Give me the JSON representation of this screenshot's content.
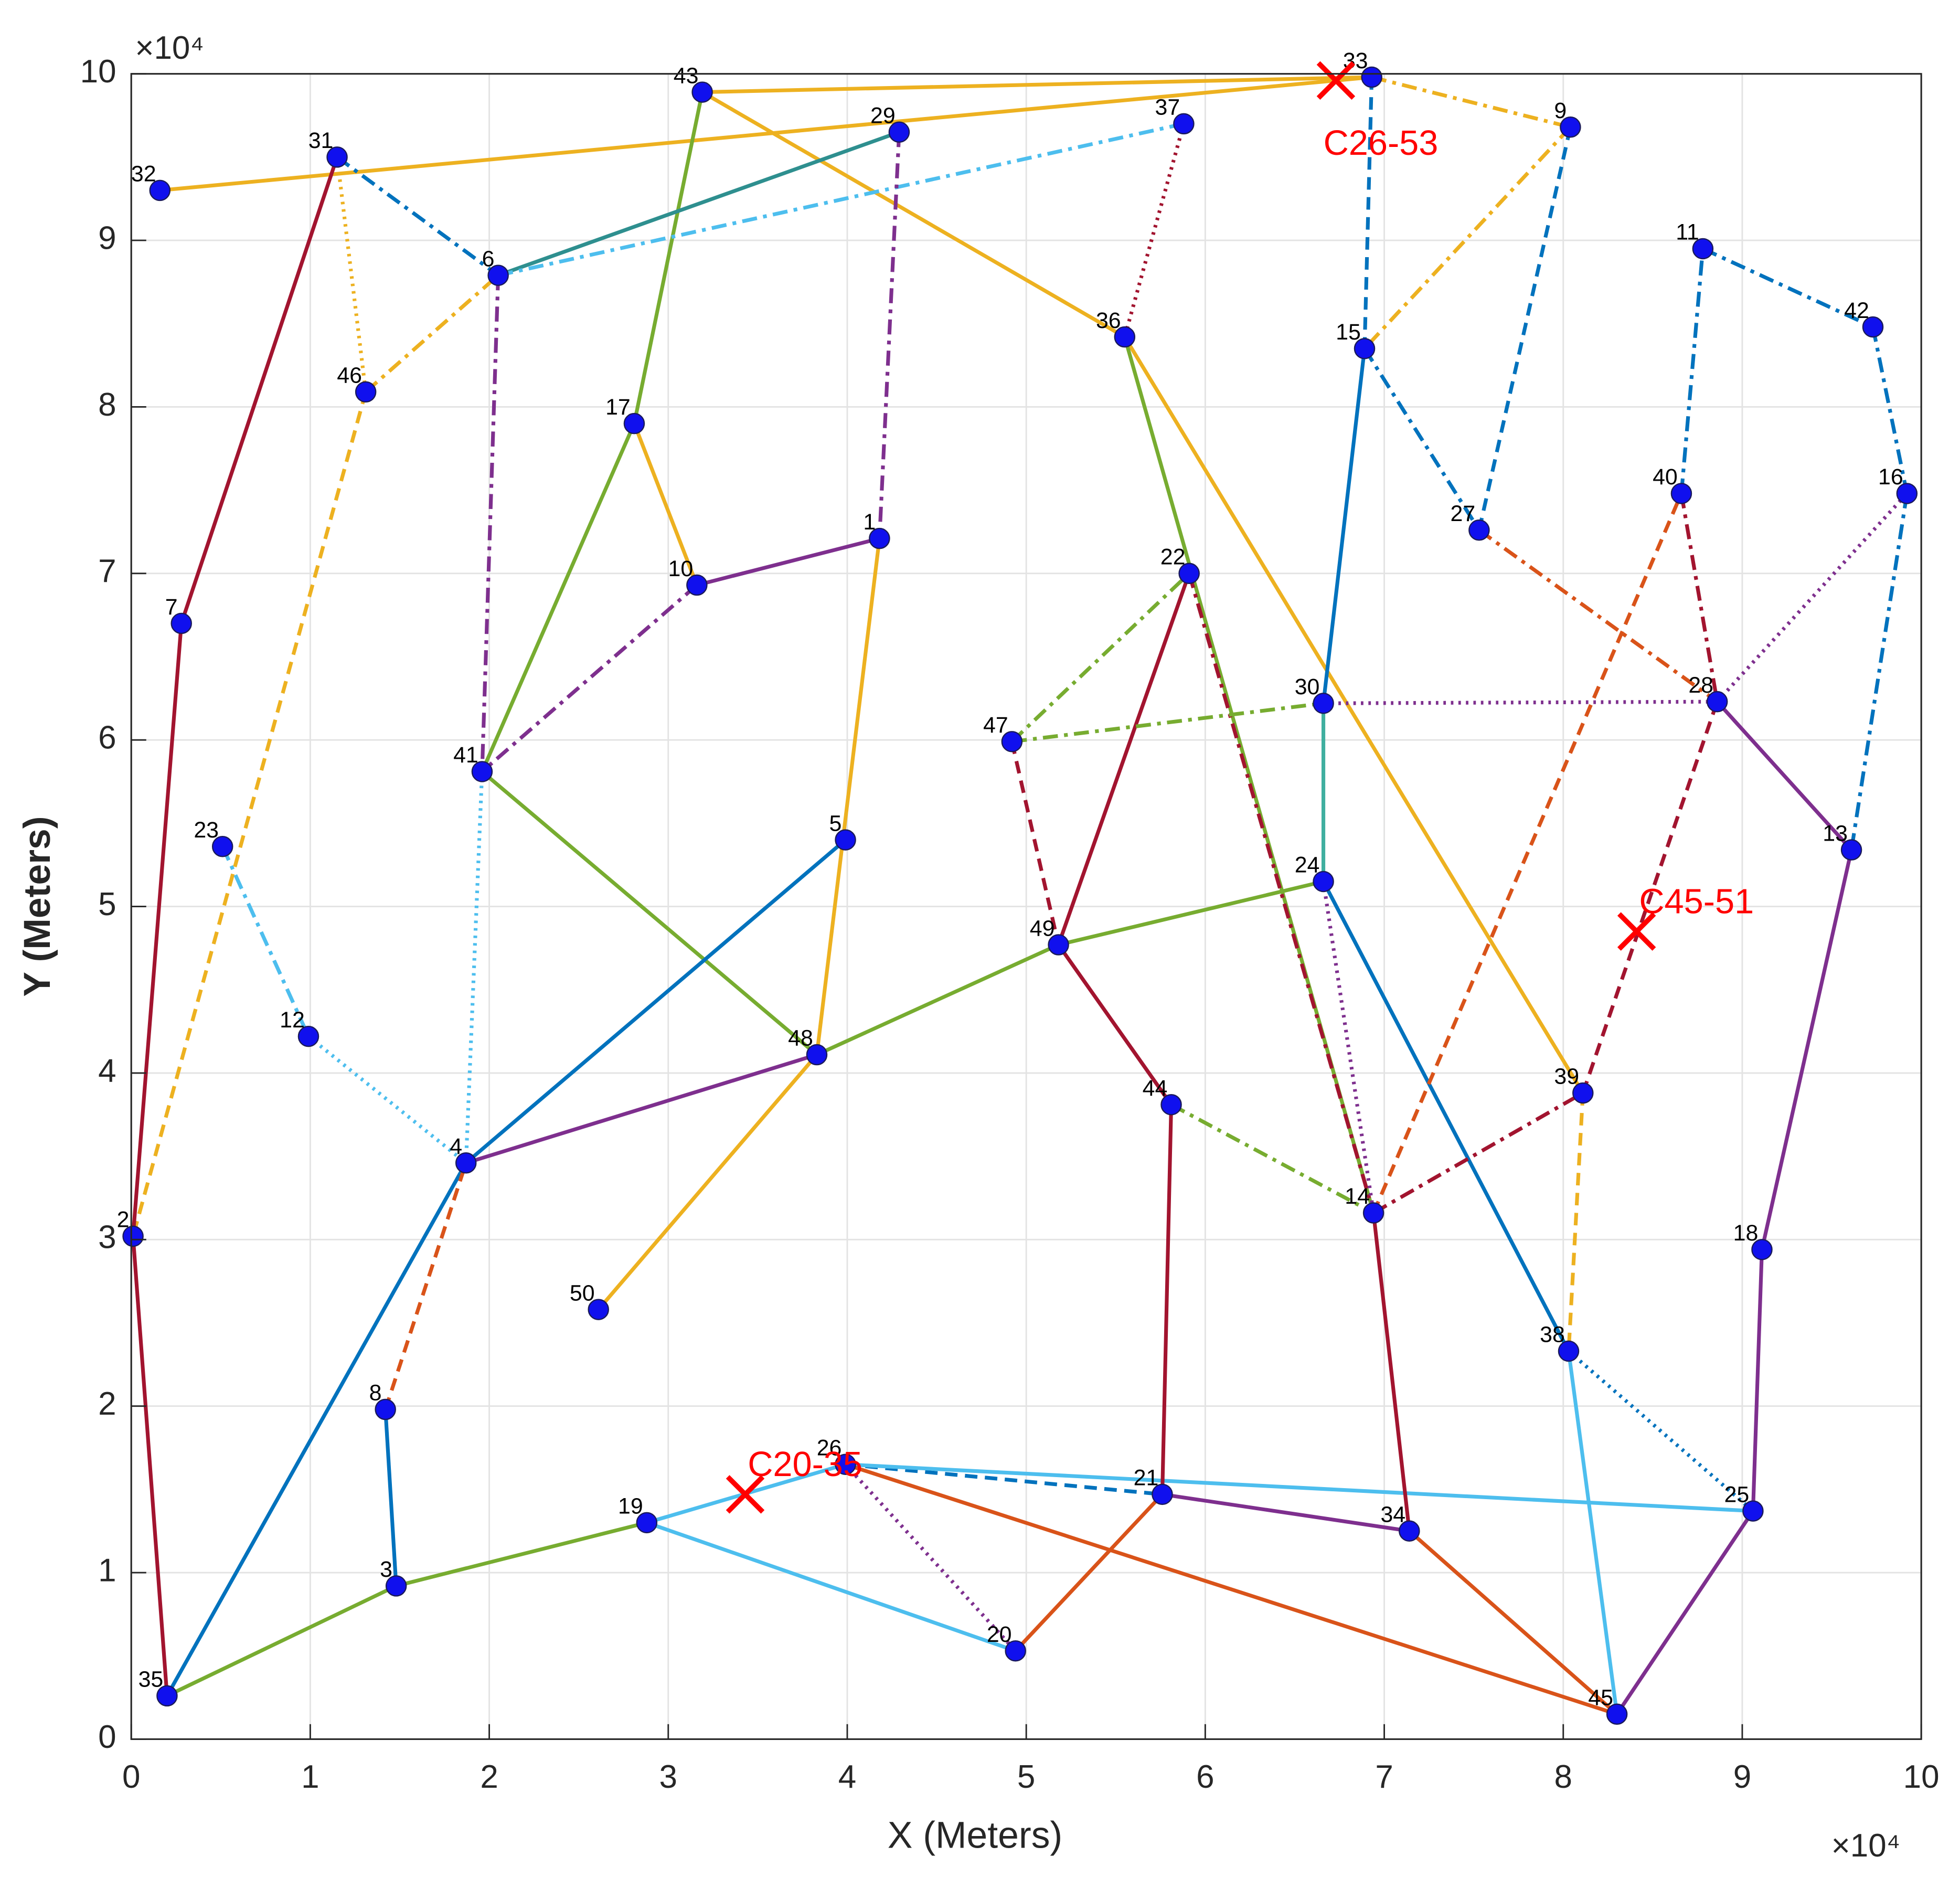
{
  "chart_data": {
    "type": "scatter",
    "x_label": "X  (Meters)",
    "y_label": "Y (Meters)",
    "x_exponent": "×10⁴",
    "y_exponent": "×10⁴",
    "xlim": [
      0,
      100000
    ],
    "ylim": [
      0,
      100000
    ],
    "xticks": [
      0,
      {
        "value": 10000,
        "label": "1"
      },
      {
        "value": 20000,
        "label": "2"
      },
      {
        "value": 30000,
        "label": "3"
      },
      {
        "value": 40000,
        "label": "4"
      },
      {
        "value": 50000,
        "label": "5"
      },
      {
        "value": 60000,
        "label": "6"
      },
      {
        "value": 70000,
        "label": "7"
      },
      {
        "value": 80000,
        "label": "8"
      },
      {
        "value": 90000,
        "label": "9"
      },
      {
        "value": 100000,
        "label": "10"
      }
    ],
    "yticks": [
      0,
      {
        "value": 10000,
        "label": "1"
      },
      {
        "value": 20000,
        "label": "2"
      },
      {
        "value": 30000,
        "label": "3"
      },
      {
        "value": 40000,
        "label": "4"
      },
      {
        "value": 50000,
        "label": "5"
      },
      {
        "value": 60000,
        "label": "6"
      },
      {
        "value": 70000,
        "label": "7"
      },
      {
        "value": 80000,
        "label": "8"
      },
      {
        "value": 90000,
        "label": "9"
      },
      {
        "value": 100000,
        "label": "10"
      }
    ],
    "grid": true,
    "node_color": "#1010ee",
    "nodes": {
      "labels": [
        "1",
        "2",
        "3",
        "4",
        "5",
        "6",
        "7",
        "8",
        "9",
        "10",
        "11",
        "12",
        "13",
        "14",
        "15",
        "16",
        "17",
        "18",
        "19",
        "20",
        "21",
        "22",
        "23",
        "24",
        "25",
        "26",
        "27",
        "28",
        "29",
        "30",
        "31",
        "32",
        "33",
        "34",
        "35",
        "36",
        "37",
        "38",
        "39",
        "40",
        "41",
        "42",
        "43",
        "44",
        "45",
        "46",
        "47",
        "48",
        "49",
        "50"
      ],
      "x": [
        41800,
        100,
        14800,
        18700,
        39900,
        20500,
        2800,
        14200,
        80400,
        31600,
        87800,
        9900,
        96100,
        69400,
        68900,
        99200,
        28100,
        91100,
        28800,
        49400,
        57600,
        59100,
        5100,
        66600,
        90600,
        39900,
        75300,
        88600,
        42900,
        66600,
        11500,
        1600,
        69300,
        71400,
        2000,
        55500,
        58800,
        80300,
        81100,
        86600,
        19600,
        97300,
        31900,
        58100,
        83000,
        13100,
        49200,
        38300,
        51800,
        26100
      ],
      "y": [
        72100,
        30200,
        9200,
        34600,
        54000,
        87900,
        67000,
        19800,
        96800,
        69300,
        89500,
        42200,
        53400,
        31600,
        83500,
        74800,
        79000,
        29400,
        13000,
        5300,
        14700,
        70000,
        53600,
        51500,
        13700,
        16500,
        72600,
        62300,
        96500,
        62200,
        95000,
        93000,
        99800,
        12500,
        2600,
        84200,
        97000,
        23300,
        38800,
        74800,
        58100,
        84800,
        98900,
        38100,
        1500,
        80900,
        59900,
        41100,
        47700,
        25800
      ]
    },
    "edges": [
      {
        "from": "32",
        "to": "33",
        "color": "#EDB120",
        "style": "solid"
      },
      {
        "from": "43",
        "to": "33",
        "color": "#EDB120",
        "style": "solid"
      },
      {
        "from": "43",
        "to": "36",
        "color": "#EDB120",
        "style": "solid"
      },
      {
        "from": "36",
        "to": "39",
        "color": "#EDB120",
        "style": "solid"
      },
      {
        "from": "17",
        "to": "10",
        "color": "#EDB120",
        "style": "solid"
      },
      {
        "from": "1",
        "to": "48",
        "color": "#EDB120",
        "style": "solid"
      },
      {
        "from": "48",
        "to": "50",
        "color": "#EDB120",
        "style": "solid"
      },
      {
        "from": "46",
        "to": "2",
        "color": "#EDB120",
        "style": "dashed"
      },
      {
        "from": "39",
        "to": "38",
        "color": "#EDB120",
        "style": "dashed"
      },
      {
        "from": "46",
        "to": "6",
        "color": "#EDB120",
        "style": "dashdot"
      },
      {
        "from": "33",
        "to": "9",
        "color": "#EDB120",
        "style": "dashdot"
      },
      {
        "from": "9",
        "to": "15",
        "color": "#EDB120",
        "style": "dashdot"
      },
      {
        "from": "31",
        "to": "46",
        "color": "#EDB120",
        "style": "dotted"
      },
      {
        "from": "43",
        "to": "17",
        "color": "#77AC30",
        "style": "solid"
      },
      {
        "from": "17",
        "to": "41",
        "color": "#77AC30",
        "style": "solid"
      },
      {
        "from": "41",
        "to": "48",
        "color": "#77AC30",
        "style": "solid"
      },
      {
        "from": "48",
        "to": "49",
        "color": "#77AC30",
        "style": "solid"
      },
      {
        "from": "49",
        "to": "24",
        "color": "#77AC30",
        "style": "solid"
      },
      {
        "from": "35",
        "to": "3",
        "color": "#77AC30",
        "style": "solid"
      },
      {
        "from": "3",
        "to": "19",
        "color": "#77AC30",
        "style": "solid"
      },
      {
        "from": "36",
        "to": "14",
        "color": "#77AC30",
        "style": "solid"
      },
      {
        "from": "6",
        "to": "29",
        "color": "#2E8F8F",
        "style": "solid"
      },
      {
        "from": "35",
        "to": "4",
        "color": "#0072BD",
        "style": "solid"
      },
      {
        "from": "4",
        "to": "5",
        "color": "#0072BD",
        "style": "solid"
      },
      {
        "from": "30",
        "to": "15",
        "color": "#0072BD",
        "style": "solid"
      },
      {
        "from": "24",
        "to": "38",
        "color": "#0072BD",
        "style": "solid"
      },
      {
        "from": "8",
        "to": "3",
        "color": "#0072BD",
        "style": "solid"
      },
      {
        "from": "30",
        "to": "24",
        "color": "#3FAF9F",
        "style": "solid"
      },
      {
        "from": "33",
        "to": "15",
        "color": "#0072BD",
        "style": "dashed"
      },
      {
        "from": "26",
        "to": "21",
        "color": "#0072BD",
        "style": "dashed"
      },
      {
        "from": "27",
        "to": "9",
        "color": "#0072BD",
        "style": "dashed"
      },
      {
        "from": "31",
        "to": "6",
        "color": "#0072BD",
        "style": "dashdot"
      },
      {
        "from": "11",
        "to": "42",
        "color": "#0072BD",
        "style": "dashdot"
      },
      {
        "from": "42",
        "to": "16",
        "color": "#0072BD",
        "style": "dashdot"
      },
      {
        "from": "16",
        "to": "13",
        "color": "#0072BD",
        "style": "dashdot"
      },
      {
        "from": "40",
        "to": "11",
        "color": "#0072BD",
        "style": "dashdot"
      },
      {
        "from": "15",
        "to": "27",
        "color": "#0072BD",
        "style": "dashdot"
      },
      {
        "from": "38",
        "to": "25",
        "color": "#0072BD",
        "style": "dotted"
      },
      {
        "from": "6",
        "to": "37",
        "color": "#4DBEEE",
        "style": "dashdot"
      },
      {
        "from": "19",
        "to": "26",
        "color": "#4DBEEE",
        "style": "solid"
      },
      {
        "from": "26",
        "to": "25",
        "color": "#4DBEEE",
        "style": "solid"
      },
      {
        "from": "19",
        "to": "20",
        "color": "#4DBEEE",
        "style": "solid"
      },
      {
        "from": "38",
        "to": "45",
        "color": "#4DBEEE",
        "style": "solid"
      },
      {
        "from": "23",
        "to": "12",
        "color": "#4DBEEE",
        "style": "dashdot"
      },
      {
        "from": "12",
        "to": "4",
        "color": "#4DBEEE",
        "style": "dotted"
      },
      {
        "from": "4",
        "to": "41",
        "color": "#4DBEEE",
        "style": "dotted"
      },
      {
        "from": "7",
        "to": "31",
        "color": "#A2142F",
        "style": "solid"
      },
      {
        "from": "2",
        "to": "7",
        "color": "#A2142F",
        "style": "solid"
      },
      {
        "from": "2",
        "to": "35",
        "color": "#A2142F",
        "style": "solid"
      },
      {
        "from": "49",
        "to": "22",
        "color": "#A2142F",
        "style": "solid"
      },
      {
        "from": "49",
        "to": "44",
        "color": "#A2142F",
        "style": "solid"
      },
      {
        "from": "44",
        "to": "21",
        "color": "#A2142F",
        "style": "solid"
      },
      {
        "from": "14",
        "to": "34",
        "color": "#A2142F",
        "style": "solid"
      },
      {
        "from": "37",
        "to": "36",
        "color": "#A2142F",
        "style": "dotted"
      },
      {
        "from": "47",
        "to": "49",
        "color": "#A2142F",
        "style": "dashed"
      },
      {
        "from": "14",
        "to": "39",
        "color": "#A2142F",
        "style": "dashdot"
      },
      {
        "from": "22",
        "to": "14",
        "color": "#A2142F",
        "style": "dashdot"
      },
      {
        "from": "40",
        "to": "28",
        "color": "#A2142F",
        "style": "dashdot"
      },
      {
        "from": "39",
        "to": "28",
        "color": "#A2142F",
        "style": "dashed"
      },
      {
        "from": "4",
        "to": "48",
        "color": "#7E2F8E",
        "style": "solid"
      },
      {
        "from": "10",
        "to": "41",
        "color": "#7E2F8E",
        "style": "dashdot"
      },
      {
        "from": "1",
        "to": "10",
        "color": "#7E2F8E",
        "style": "solid"
      },
      {
        "from": "29",
        "to": "1",
        "color": "#7E2F8E",
        "style": "dashdot"
      },
      {
        "from": "6",
        "to": "41",
        "color": "#7E2F8E",
        "style": "dashdot"
      },
      {
        "from": "28",
        "to": "13",
        "color": "#7E2F8E",
        "style": "solid"
      },
      {
        "from": "13",
        "to": "18",
        "color": "#7E2F8E",
        "style": "solid"
      },
      {
        "from": "18",
        "to": "25",
        "color": "#7E2F8E",
        "style": "solid"
      },
      {
        "from": "25",
        "to": "45",
        "color": "#7E2F8E",
        "style": "solid"
      },
      {
        "from": "30",
        "to": "28",
        "color": "#7E2F8E",
        "style": "dotted"
      },
      {
        "from": "28",
        "to": "16",
        "color": "#7E2F8E",
        "style": "dotted"
      },
      {
        "from": "24",
        "to": "14",
        "color": "#7E2F8E",
        "style": "dotted"
      },
      {
        "from": "21",
        "to": "34",
        "color": "#7E2F8E",
        "style": "solid"
      },
      {
        "from": "26",
        "to": "20",
        "color": "#7E2F8E",
        "style": "dotted"
      },
      {
        "from": "26",
        "to": "45",
        "color": "#D95319",
        "style": "solid"
      },
      {
        "from": "20",
        "to": "21",
        "color": "#D95319",
        "style": "solid"
      },
      {
        "from": "34",
        "to": "45",
        "color": "#D95319",
        "style": "solid"
      },
      {
        "from": "14",
        "to": "40",
        "color": "#D95319",
        "style": "dashed"
      },
      {
        "from": "8",
        "to": "4",
        "color": "#D95319",
        "style": "dashed"
      },
      {
        "from": "27",
        "to": "28",
        "color": "#D95319",
        "style": "dashdot"
      },
      {
        "from": "47",
        "to": "22",
        "color": "#77AC30",
        "style": "dashdot"
      },
      {
        "from": "47",
        "to": "30",
        "color": "#77AC30",
        "style": "dashdot"
      },
      {
        "from": "44",
        "to": "14",
        "color": "#77AC30",
        "style": "dashdot"
      }
    ],
    "markers": {
      "color": "#FF0000",
      "labels": [
        "C26-53",
        "C45-51",
        "C20-35"
      ],
      "x": [
        67300,
        84100,
        34300
      ],
      "y": [
        99600,
        48500,
        14700
      ]
    }
  }
}
